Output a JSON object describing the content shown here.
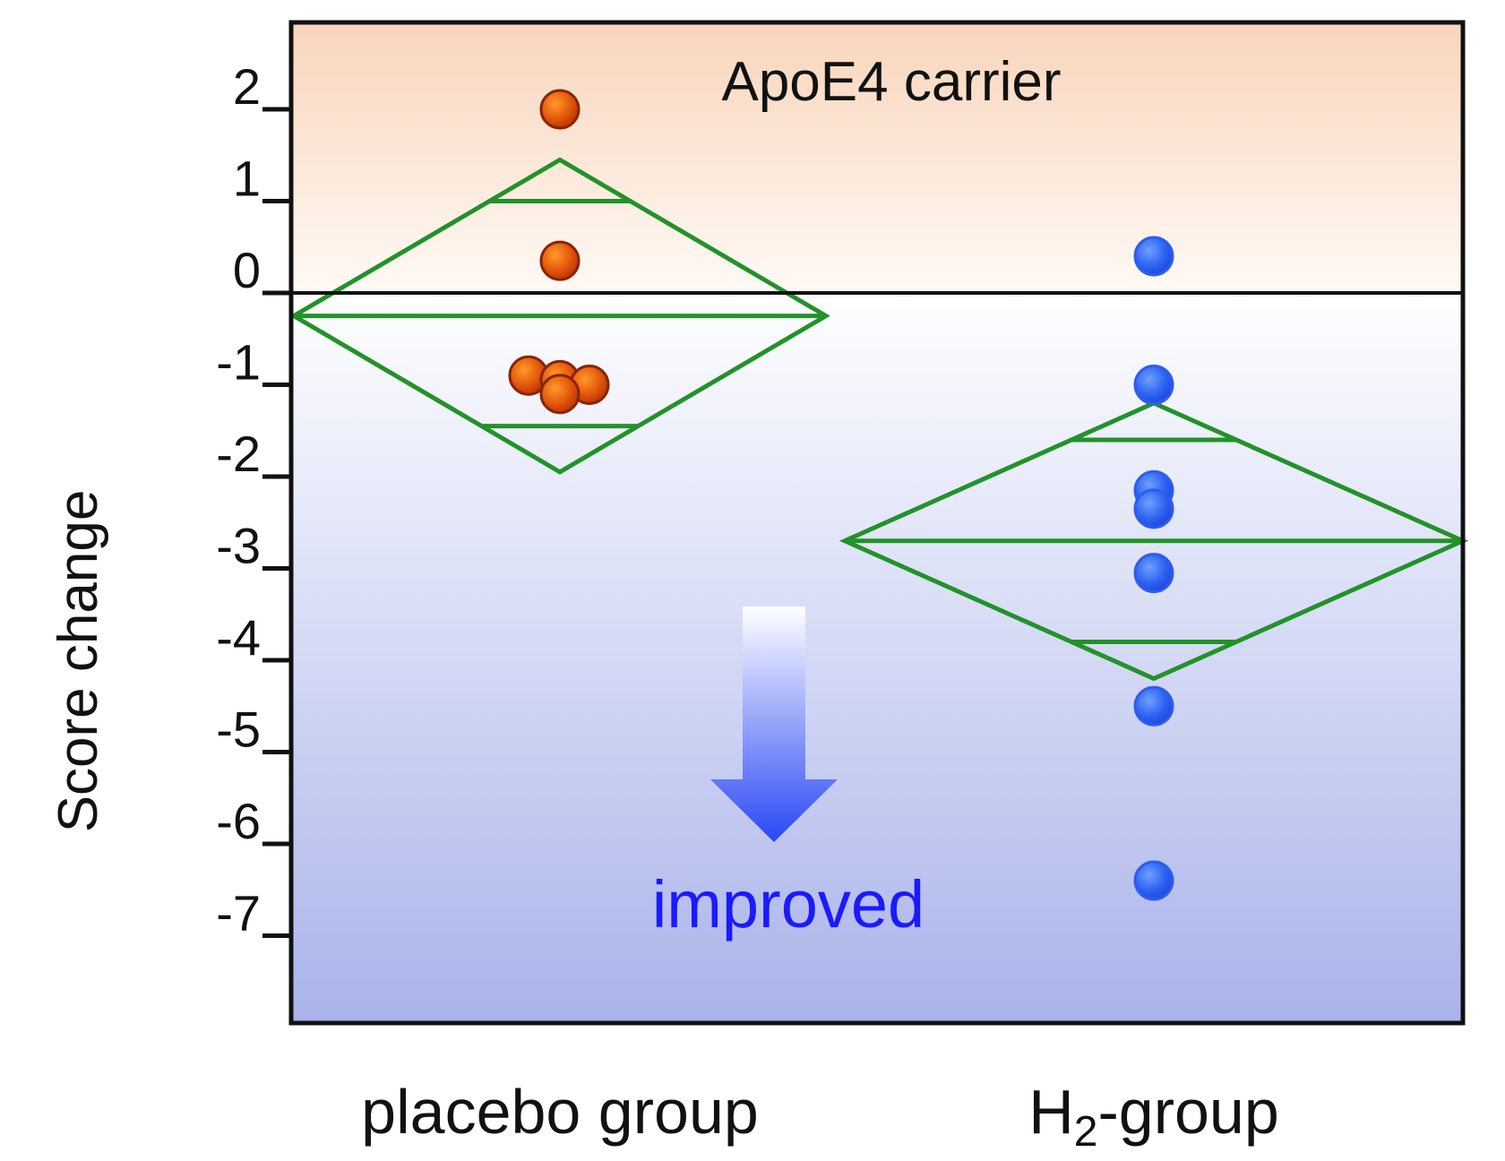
{
  "chart_data": {
    "type": "scatter",
    "ylabel": "Score change",
    "ylim": [
      -7.8,
      2.8
    ],
    "yticks": [
      2,
      1,
      0,
      -1,
      -2,
      -3,
      -4,
      -5,
      -6,
      -7
    ],
    "categories": [
      "placebo group",
      "H2-group"
    ],
    "category_label_parts": [
      {
        "main": "placebo group",
        "sub": "",
        "tail": ""
      },
      {
        "main": "H",
        "sub": "2",
        "tail": "-group"
      }
    ],
    "annotation": "ApoE4 carrier",
    "direction_label": "improved",
    "grid": false,
    "series": [
      {
        "category": "placebo group",
        "color": "#d9480f",
        "points": [
          2.0,
          0.35,
          -0.9,
          -0.95,
          -1.0,
          -1.1
        ],
        "mean_diamond": {
          "mean": -0.25,
          "upper": 1.45,
          "lower": -1.95,
          "upper_bar": 1.0,
          "lower_bar": -1.45
        }
      },
      {
        "category": "H2-group",
        "color": "#2255ee",
        "points": [
          0.4,
          -1.0,
          -2.15,
          -2.35,
          -3.05,
          -4.5,
          -6.4
        ],
        "mean_diamond": {
          "mean": -2.7,
          "upper": -1.2,
          "lower": -4.2,
          "upper_bar": -1.6,
          "lower_bar": -3.8
        }
      }
    ],
    "colors": {
      "diamond": "#22922a",
      "improved_text": "#1a1aff",
      "bg_top": "#f9d8c0",
      "bg_bottom": "#aab4ea"
    }
  }
}
